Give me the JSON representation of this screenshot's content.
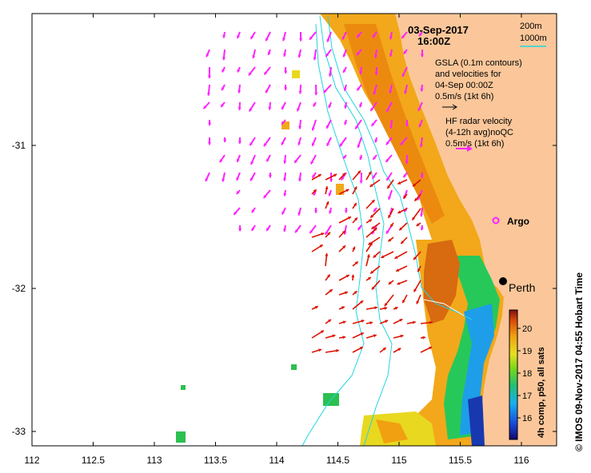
{
  "map": {
    "date": "03-Sep-2017",
    "time": "16:00Z",
    "depth_legend": {
      "shallow": "200m",
      "deep": "1000m"
    },
    "gsla": {
      "line1": "GSLA (0.1m contours)",
      "line2": "and velocities for",
      "line3": "04-Sep 00:00Z",
      "scale": "0.5m/s (1kt 6h)"
    },
    "hf_radar": {
      "line1": "HF radar velocity",
      "line2": "(4-12h avg)noQC",
      "scale": "0.5m/s (1kt 6h)"
    },
    "argo_label": "Argo",
    "city_label": "Perth",
    "x_ticks": [
      "112",
      "112.5",
      "113",
      "113.5",
      "114",
      "114.5",
      "115",
      "115.5",
      "116"
    ],
    "y_ticks": [
      "-31",
      "-32",
      "-33"
    ],
    "colorbar": {
      "ticks": [
        "20",
        "19",
        "18",
        "17",
        "16"
      ],
      "title": "4h comp, p50, all sats"
    },
    "credit": "© IMOS 09-Nov-2017 04:55 Hobart Time",
    "colors": {
      "land": "#fbc79a",
      "radar_arrow": "#ff22ff",
      "gsla_arrow": "#dd1100",
      "isobath_200": "#1fd6e0",
      "isobath_1000": "#1fd6e0"
    }
  }
}
